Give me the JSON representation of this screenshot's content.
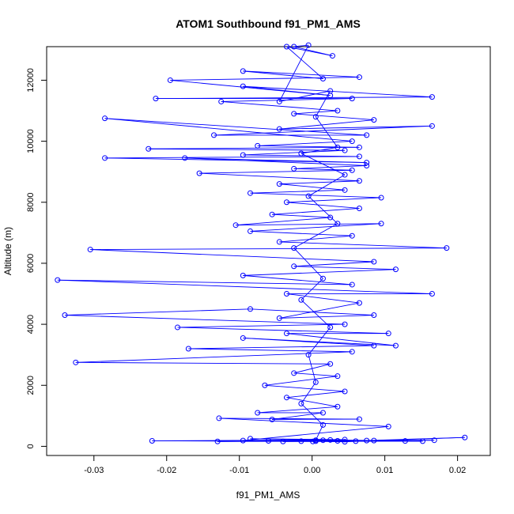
{
  "chart_data": {
    "type": "line",
    "title": "ATOM1 Southbound f91_PM1_AMS",
    "xlabel": "f91_PM1_AMS",
    "ylabel": "Altitude (m)",
    "xlim": [
      -0.0365,
      0.0245
    ],
    "ylim": [
      -300,
      13100
    ],
    "x_ticks": [
      -0.03,
      -0.02,
      -0.01,
      0.0,
      0.01,
      0.02
    ],
    "x_tick_labels": [
      "-0.03",
      "-0.02",
      "-0.01",
      "0.00",
      "0.01",
      "0.02"
    ],
    "y_ticks": [
      0,
      2000,
      4000,
      6000,
      8000,
      10000,
      12000
    ],
    "y_tick_labels": [
      "0",
      "2000",
      "4000",
      "6000",
      "8000",
      "10000",
      "12000"
    ],
    "grid": false,
    "legend": "none",
    "series": [
      {
        "color": "#0000ff",
        "marker": "open-circle",
        "points": [
          [
            0.0001,
            160
          ],
          [
            -0.022,
            180
          ],
          [
            0.0025,
            210
          ],
          [
            -0.0015,
            170
          ],
          [
            0.0168,
            200
          ],
          [
            0.006,
            170
          ],
          [
            -0.013,
            160
          ],
          [
            0.0075,
            190
          ],
          [
            0.021,
            290
          ],
          [
            0.0045,
            150
          ],
          [
            -0.006,
            180
          ],
          [
            0.0128,
            175
          ],
          [
            -0.004,
            160
          ],
          [
            0.0152,
            170
          ],
          [
            0.0015,
            200
          ],
          [
            0.0035,
            180
          ],
          [
            -0.0095,
            190
          ],
          [
            0.0105,
            650
          ],
          [
            -0.0128,
            920
          ],
          [
            0.0065,
            890
          ],
          [
            -0.0055,
            880
          ],
          [
            0.0015,
            1100
          ],
          [
            -0.0075,
            1100
          ],
          [
            0.0035,
            1300
          ],
          [
            -0.0035,
            1600
          ],
          [
            0.0045,
            1800
          ],
          [
            -0.0065,
            2000
          ],
          [
            0.0035,
            2300
          ],
          [
            -0.0025,
            2400
          ],
          [
            0.0025,
            2700
          ],
          [
            -0.0325,
            2750
          ],
          [
            0.0055,
            3100
          ],
          [
            -0.017,
            3200
          ],
          [
            0.0085,
            3300
          ],
          [
            -0.0095,
            3550
          ],
          [
            0.0115,
            3300
          ],
          [
            -0.0035,
            3700
          ],
          [
            0.0105,
            3700
          ],
          [
            -0.0185,
            3900
          ],
          [
            0.0045,
            4000
          ],
          [
            -0.034,
            4300
          ],
          [
            -0.0085,
            4500
          ],
          [
            0.0085,
            4300
          ],
          [
            -0.0045,
            4200
          ],
          [
            0.0065,
            4700
          ],
          [
            -0.0035,
            5000
          ],
          [
            0.0165,
            5000
          ],
          [
            -0.035,
            5450
          ],
          [
            0.0055,
            5300
          ],
          [
            -0.0095,
            5600
          ],
          [
            0.0115,
            5800
          ],
          [
            -0.0025,
            5900
          ],
          [
            0.0085,
            6050
          ],
          [
            -0.0305,
            6450
          ],
          [
            0.0185,
            6500
          ],
          [
            -0.0045,
            6700
          ],
          [
            0.0055,
            6900
          ],
          [
            -0.0085,
            7050
          ],
          [
            0.0095,
            7300
          ],
          [
            -0.0105,
            7250
          ],
          [
            0.0025,
            7500
          ],
          [
            -0.0055,
            7600
          ],
          [
            0.0065,
            7800
          ],
          [
            -0.0035,
            8000
          ],
          [
            0.0095,
            8150
          ],
          [
            -0.0085,
            8300
          ],
          [
            0.0045,
            8400
          ],
          [
            -0.0045,
            8600
          ],
          [
            0.0065,
            8700
          ],
          [
            -0.0155,
            8950
          ],
          [
            0.0055,
            9050
          ],
          [
            -0.0025,
            9100
          ],
          [
            0.0075,
            9200
          ],
          [
            -0.0175,
            9450
          ],
          [
            0.0075,
            9300
          ],
          [
            -0.0285,
            9450
          ],
          [
            0.0065,
            9500
          ],
          [
            -0.0095,
            9550
          ],
          [
            0.0045,
            9700
          ],
          [
            -0.0225,
            9750
          ],
          [
            0.0065,
            9800
          ],
          [
            -0.0075,
            9850
          ],
          [
            0.0055,
            10000
          ],
          [
            -0.0285,
            10750
          ],
          [
            0.0075,
            10200
          ],
          [
            -0.0135,
            10200
          ],
          [
            0.0165,
            10500
          ],
          [
            -0.0045,
            10400
          ],
          [
            0.0085,
            10700
          ],
          [
            -0.0025,
            10900
          ],
          [
            0.0035,
            11000
          ],
          [
            -0.0125,
            11300
          ],
          [
            0.0055,
            11400
          ],
          [
            -0.0215,
            11400
          ],
          [
            0.0165,
            11450
          ],
          [
            -0.0095,
            11800
          ],
          [
            0.0025,
            11500
          ],
          [
            -0.0195,
            12000
          ],
          [
            0.0065,
            12100
          ],
          [
            -0.0095,
            12300
          ],
          [
            0.0015,
            12050
          ],
          [
            -0.0035,
            13100
          ],
          [
            0.0028,
            12800
          ],
          [
            -0.0025,
            13100
          ],
          [
            -0.0005,
            13150
          ],
          [
            -0.0045,
            11300
          ],
          [
            0.0025,
            11650
          ],
          [
            0.0005,
            10800
          ],
          [
            0.0035,
            9800
          ],
          [
            -0.0015,
            9600
          ],
          [
            0.0045,
            8900
          ],
          [
            -0.0005,
            8200
          ],
          [
            0.0035,
            7300
          ],
          [
            -0.0025,
            6500
          ],
          [
            0.0015,
            5500
          ],
          [
            -0.0015,
            4800
          ],
          [
            0.0025,
            3900
          ],
          [
            -0.0005,
            3000
          ],
          [
            0.0005,
            2100
          ],
          [
            -0.0015,
            1400
          ],
          [
            0.0015,
            700
          ],
          [
            0.0005,
            200
          ],
          [
            0.0045,
            220
          ],
          [
            -0.0085,
            250
          ],
          [
            0.0085,
            190
          ],
          [
            0.0005,
            170
          ]
        ]
      }
    ]
  }
}
